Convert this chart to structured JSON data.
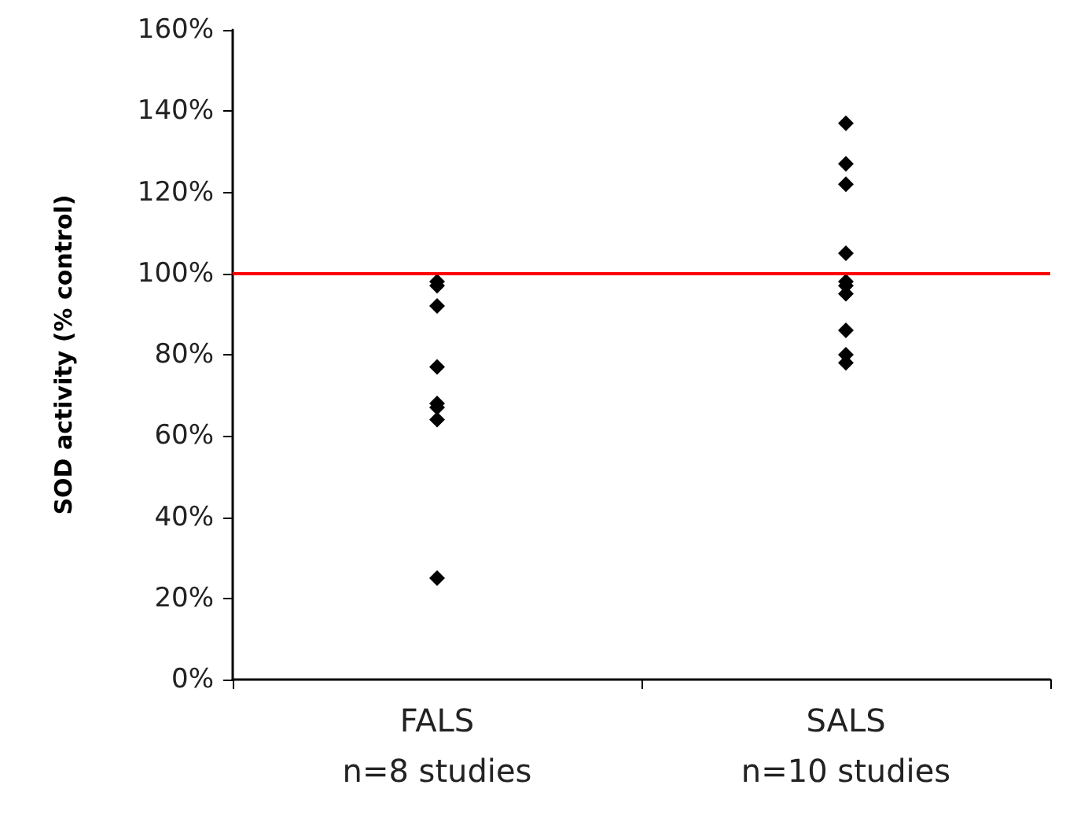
{
  "chart_data": {
    "type": "scatter",
    "ylabel": "SOD activity (% control)",
    "categories": [
      "FALS\nn=8 studies",
      "SALS\nn=10 studies"
    ],
    "series": [
      {
        "color": "#000000",
        "x": [
          "FALS\nn=8 studies",
          "FALS\nn=8 studies",
          "FALS\nn=8 studies",
          "FALS\nn=8 studies",
          "FALS\nn=8 studies",
          "FALS\nn=8 studies",
          "FALS\nn=8 studies",
          "FALS\nn=8 studies"
        ],
        "values": [
          98,
          97,
          92,
          77,
          68,
          67,
          64,
          25
        ]
      },
      {
        "color": "#000000",
        "x": [
          "SALS\nn=10 studies",
          "SALS\nn=10 studies",
          "SALS\nn=10 studies",
          "SALS\nn=10 studies",
          "SALS\nn=10 studies",
          "SALS\nn=10 studies",
          "SALS\nn=10 studies",
          "SALS\nn=10 studies",
          "SALS\nn=10 studies",
          "SALS\nn=10 studies"
        ],
        "values": [
          137,
          127,
          122,
          105,
          98,
          97,
          95,
          86,
          80,
          78
        ]
      }
    ],
    "ylim": [
      0,
      160
    ],
    "yticks": [
      {
        "value": 0,
        "label": "0%"
      },
      {
        "value": 20,
        "label": "20%"
      },
      {
        "value": 40,
        "label": "40%"
      },
      {
        "value": 60,
        "label": "60%"
      },
      {
        "value": 80,
        "label": "80%"
      },
      {
        "value": 100,
        "label": "100%"
      },
      {
        "value": 120,
        "label": "120%"
      },
      {
        "value": 140,
        "label": "140%"
      },
      {
        "value": 160,
        "label": "160%"
      }
    ],
    "ref_lines": [
      {
        "axis": "y",
        "value": 100,
        "color": "#ff0000"
      }
    ],
    "marker": "diamond",
    "grid": false
  }
}
